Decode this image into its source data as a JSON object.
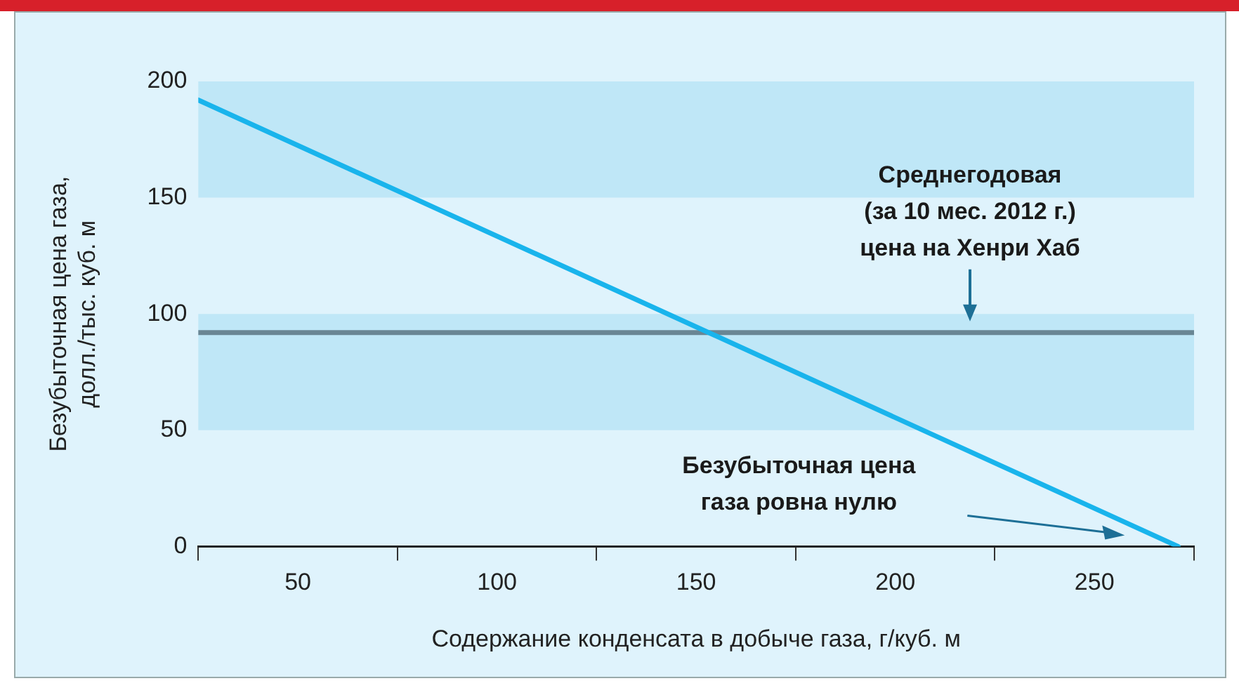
{
  "chart_data": {
    "type": "line",
    "xlabel": "Содержание конденсата в добыче газа, г/куб. м",
    "ylabel": "Безубыточная цена газа,\nдолл./тыс. куб. м",
    "x": [
      25,
      271
    ],
    "series": [
      {
        "color": "#19b4ec",
        "values": [
          192,
          0
        ]
      }
    ],
    "xlim": [
      25,
      275
    ],
    "xticks": [
      {
        "value": 25,
        "label": null
      },
      50,
      {
        "value": 75,
        "label": null
      },
      100,
      {
        "value": 125,
        "label": null
      },
      150,
      {
        "value": 175,
        "label": null
      },
      200,
      {
        "value": 225,
        "label": null
      },
      250,
      {
        "value": 275,
        "label": null
      }
    ],
    "ylim": [
      0,
      200
    ],
    "yticks": [
      0,
      50,
      100,
      150,
      200
    ],
    "bands": [
      {
        "axis": "y",
        "from": 150,
        "to": 200,
        "color": "#bfe7f7"
      },
      {
        "axis": "y",
        "from": 50,
        "to": 100,
        "color": "#bfe7f7"
      }
    ],
    "ref_lines": [
      {
        "axis": "y",
        "value": 92,
        "color": "#6a8694",
        "label": "Среднегодовая\n(за 10 мес. 2012 г.)\nцена на Хенри Хаб"
      }
    ],
    "annotations": [
      "Безубыточная цена\nгаза ровна нулю"
    ],
    "grid": false,
    "legend": false,
    "marker": "none",
    "line_style": "solid"
  }
}
